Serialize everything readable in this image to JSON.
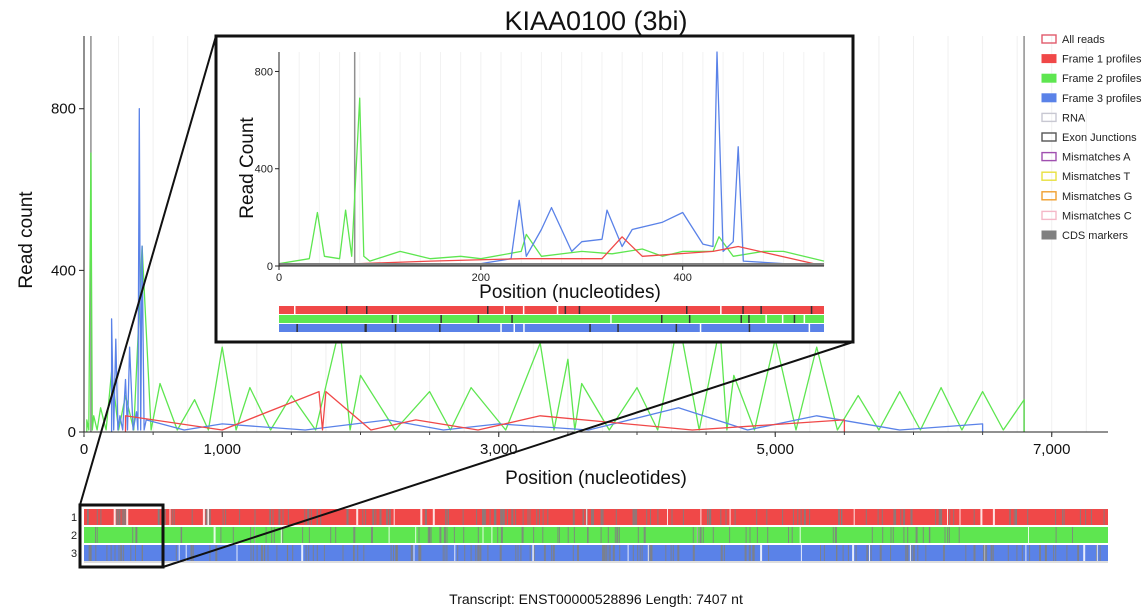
{
  "chart_data": [
    {
      "type": "line",
      "title": "KIAA0100 (3bi)",
      "xlabel": "Position (nucleotides)",
      "ylabel": "Read count",
      "xlim": [
        0,
        7407
      ],
      "ylim": [
        0,
        980
      ],
      "xticks": [
        0,
        1000,
        3000,
        5000,
        7000
      ],
      "xtick_labels": [
        "0",
        "1,000",
        "3,000",
        "5,000",
        "7,000"
      ],
      "yticks": [
        0,
        400,
        800
      ],
      "ytick_labels": [
        "0",
        "400",
        "800"
      ],
      "legend_position": "right",
      "legend": [
        {
          "label": "All reads",
          "color": "#e05a6b",
          "style": "outline"
        },
        {
          "label": "Frame 1 profiles",
          "color": "#f04848",
          "style": "filled"
        },
        {
          "label": "Frame 2 profiles",
          "color": "#5ee650",
          "style": "filled"
        },
        {
          "label": "Frame 3 profiles",
          "color": "#5a82e8",
          "style": "filled"
        },
        {
          "label": "RNA",
          "color": "#c8c8d2",
          "style": "outline"
        },
        {
          "label": "Exon Junctions",
          "color": "#555555",
          "style": "outline"
        },
        {
          "label": "Mismatches A",
          "color": "#a050b0",
          "style": "outline"
        },
        {
          "label": "Mismatches T",
          "color": "#e8e040",
          "style": "outline"
        },
        {
          "label": "Mismatches G",
          "color": "#f0a030",
          "style": "outline"
        },
        {
          "label": "Mismatches C",
          "color": "#f4b8c8",
          "style": "outline"
        },
        {
          "label": "CDS markers",
          "color": "#808080",
          "style": "filled"
        }
      ],
      "vertical_markers": [
        50,
        6800
      ],
      "series": [
        {
          "name": "Frame 2 profiles",
          "color": "#5ee650",
          "x": [
            20,
            50,
            70,
            120,
            200,
            300,
            420,
            550,
            800,
            1000,
            1200,
            1500,
            1850,
            2000,
            2500,
            2800,
            3300,
            3500,
            3600,
            4000,
            4300,
            4600,
            4700,
            5000,
            5300,
            5600,
            5900,
            6200,
            6500,
            6800
          ],
          "y": [
            30,
            690,
            40,
            60,
            150,
            90,
            460,
            120,
            80,
            210,
            110,
            90,
            260,
            140,
            100,
            110,
            220,
            180,
            120,
            110,
            280,
            260,
            140,
            230,
            210,
            90,
            100,
            110,
            100,
            80
          ]
        },
        {
          "name": "Frame 3 profiles",
          "color": "#5a82e8",
          "x": [
            200,
            230,
            260,
            300,
            330,
            380,
            400,
            420,
            450,
            1000,
            2200,
            3000,
            4300,
            5300,
            6500
          ],
          "y": [
            280,
            230,
            40,
            130,
            210,
            50,
            800,
            460,
            30,
            20,
            30,
            20,
            60,
            40,
            20
          ]
        },
        {
          "name": "Frame 1 profiles",
          "color": "#f04848",
          "x": [
            300,
            1700,
            1750,
            2400,
            3300,
            5500
          ],
          "y": [
            40,
            100,
            100,
            30,
            40,
            30
          ]
        }
      ]
    },
    {
      "type": "line",
      "title": "",
      "xlabel": "Position (nucleotides)",
      "ylabel": "Read Count",
      "xlim": [
        0,
        540
      ],
      "ylim": [
        0,
        880
      ],
      "xticks": [
        0,
        200,
        400
      ],
      "xtick_labels": [
        "0",
        "200",
        "400"
      ],
      "yticks": [
        0,
        400,
        800
      ],
      "ytick_labels": [
        "0",
        "400",
        "800"
      ],
      "vertical_markers": [
        75
      ],
      "series": [
        {
          "name": "Frame 2 profiles",
          "color": "#5ee650",
          "x": [
            0,
            30,
            38,
            45,
            60,
            66,
            72,
            80,
            84,
            90,
            120,
            150,
            180,
            200,
            240,
            245,
            260,
            300,
            330,
            360,
            380,
            400,
            430,
            436,
            450,
            480,
            500,
            520,
            540
          ],
          "y": [
            10,
            30,
            220,
            40,
            30,
            230,
            40,
            690,
            40,
            20,
            60,
            30,
            40,
            30,
            60,
            130,
            40,
            60,
            50,
            70,
            40,
            60,
            60,
            120,
            40,
            60,
            60,
            40,
            20
          ]
        },
        {
          "name": "Frame 3 profiles",
          "color": "#5a82e8",
          "x": [
            0,
            200,
            230,
            238,
            245,
            260,
            270,
            290,
            300,
            320,
            325,
            340,
            350,
            380,
            400,
            420,
            430,
            434,
            440,
            450,
            455,
            460,
            500,
            540
          ],
          "y": [
            5,
            10,
            30,
            270,
            40,
            150,
            240,
            60,
            100,
            110,
            230,
            80,
            150,
            180,
            220,
            90,
            80,
            880,
            60,
            100,
            490,
            20,
            10,
            5
          ]
        },
        {
          "name": "Frame 1 profiles",
          "color": "#f04848",
          "x": [
            0,
            80,
            150,
            240,
            320,
            340,
            360,
            430,
            455,
            540
          ],
          "y": [
            0,
            10,
            20,
            30,
            30,
            120,
            40,
            60,
            80,
            0
          ]
        }
      ]
    }
  ],
  "footer": {
    "transcript_label": "Transcript: ENST00000528896 Length: 7407 nt"
  },
  "frame_labels": [
    "1",
    "2",
    "3"
  ],
  "colors": {
    "frame1": "#f04848",
    "frame2": "#5ee650",
    "frame3": "#5a82e8",
    "cds": "#808080",
    "marker": "#909090"
  }
}
